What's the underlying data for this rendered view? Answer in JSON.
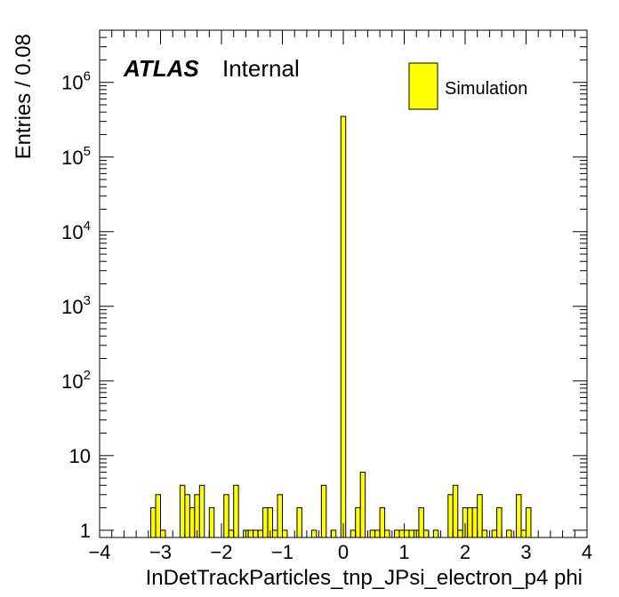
{
  "chart_data": {
    "type": "bar",
    "xlabel": "InDetTrackParticles_tnp_JPsi_electron_p4 phi",
    "ylabel": "Entries / 0.08",
    "xlim": [
      -4,
      4
    ],
    "ylim": [
      0.8,
      5000000
    ],
    "log_y": true,
    "bin_width": 0.08,
    "grid": false,
    "legend_position": "top-right",
    "x_ticks": [
      -4,
      -3,
      -2,
      -1,
      0,
      1,
      2,
      3,
      4
    ],
    "x_tick_labels": [
      "−4",
      "−3",
      "−2",
      "−1",
      "0",
      "1",
      "2",
      "3",
      "4"
    ],
    "y_ticks": [
      1,
      10,
      100,
      1000,
      10000,
      100000,
      1000000
    ],
    "y_tick_labels": [
      {
        "base": "1",
        "exp": ""
      },
      {
        "base": "10",
        "exp": ""
      },
      {
        "base": "10",
        "exp": "2"
      },
      {
        "base": "10",
        "exp": "3"
      },
      {
        "base": "10",
        "exp": "4"
      },
      {
        "base": "10",
        "exp": "5"
      },
      {
        "base": "10",
        "exp": "6"
      }
    ],
    "label_main": "ATLAS",
    "label_sub": "Internal",
    "fill_color": "#ffff00",
    "line_color": "#000000",
    "series": [
      {
        "name": "Simulation",
        "bins": [
          {
            "x": -3.12,
            "y": 2
          },
          {
            "x": -3.04,
            "y": 3
          },
          {
            "x": -2.96,
            "y": 1
          },
          {
            "x": -2.64,
            "y": 4
          },
          {
            "x": -2.56,
            "y": 3
          },
          {
            "x": -2.48,
            "y": 2
          },
          {
            "x": -2.4,
            "y": 3
          },
          {
            "x": -2.32,
            "y": 4
          },
          {
            "x": -2.16,
            "y": 2
          },
          {
            "x": -1.92,
            "y": 3
          },
          {
            "x": -1.84,
            "y": 1
          },
          {
            "x": -1.76,
            "y": 4
          },
          {
            "x": -1.6,
            "y": 1
          },
          {
            "x": -1.52,
            "y": 1
          },
          {
            "x": -1.44,
            "y": 1
          },
          {
            "x": -1.36,
            "y": 1
          },
          {
            "x": -1.28,
            "y": 2
          },
          {
            "x": -1.2,
            "y": 2
          },
          {
            "x": -1.12,
            "y": 1
          },
          {
            "x": -1.04,
            "y": 3
          },
          {
            "x": -0.96,
            "y": 1
          },
          {
            "x": -0.72,
            "y": 2
          },
          {
            "x": -0.48,
            "y": 1
          },
          {
            "x": -0.32,
            "y": 4
          },
          {
            "x": -0.16,
            "y": 1
          },
          {
            "x": 0.0,
            "y": 350000
          },
          {
            "x": 0.16,
            "y": 1
          },
          {
            "x": 0.24,
            "y": 2
          },
          {
            "x": 0.32,
            "y": 6
          },
          {
            "x": 0.48,
            "y": 1
          },
          {
            "x": 0.56,
            "y": 1
          },
          {
            "x": 0.64,
            "y": 2
          },
          {
            "x": 0.72,
            "y": 1
          },
          {
            "x": 0.88,
            "y": 1
          },
          {
            "x": 0.96,
            "y": 1
          },
          {
            "x": 1.04,
            "y": 1
          },
          {
            "x": 1.12,
            "y": 1
          },
          {
            "x": 1.2,
            "y": 1
          },
          {
            "x": 1.28,
            "y": 2
          },
          {
            "x": 1.36,
            "y": 1
          },
          {
            "x": 1.52,
            "y": 1
          },
          {
            "x": 1.76,
            "y": 3
          },
          {
            "x": 1.84,
            "y": 4
          },
          {
            "x": 1.92,
            "y": 1
          },
          {
            "x": 2.0,
            "y": 2
          },
          {
            "x": 2.08,
            "y": 2
          },
          {
            "x": 2.16,
            "y": 2
          },
          {
            "x": 2.24,
            "y": 3
          },
          {
            "x": 2.32,
            "y": 1
          },
          {
            "x": 2.48,
            "y": 1
          },
          {
            "x": 2.56,
            "y": 2
          },
          {
            "x": 2.72,
            "y": 1
          },
          {
            "x": 2.88,
            "y": 3
          },
          {
            "x": 2.96,
            "y": 1
          },
          {
            "x": 3.04,
            "y": 2
          }
        ]
      }
    ]
  }
}
